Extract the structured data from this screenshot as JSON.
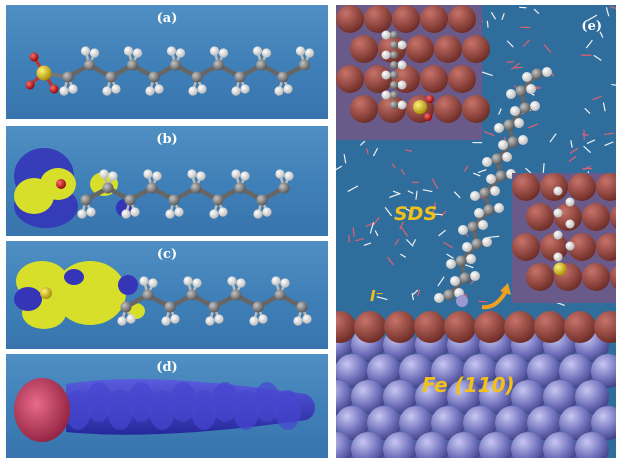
{
  "panels": {
    "a": {
      "label": "(a)"
    },
    "b": {
      "label": "(b)"
    },
    "c": {
      "label": "(c)"
    },
    "d": {
      "label": "(d)"
    },
    "e": {
      "label": "(e)"
    }
  },
  "simulation": {
    "molecule_label": "SDS",
    "ion_label": "I⁻",
    "surface_label": "Fe (110)"
  },
  "colors": {
    "panel_bg": "#4a88be",
    "carbon": "#8a8a8a",
    "hydrogen": "#f2f2f2",
    "sulfur": "#e0c020",
    "oxygen": "#d21b1b",
    "orbital_yellow": "#d7df2a",
    "orbital_blue": "#3535b8",
    "density_blue": "#3a3ac8",
    "density_red": "#c8325a",
    "fe_atom": "#7171b8",
    "surface_top": "#8d3c35",
    "water": "#e06070",
    "label_yellow": "#f2c01b"
  }
}
